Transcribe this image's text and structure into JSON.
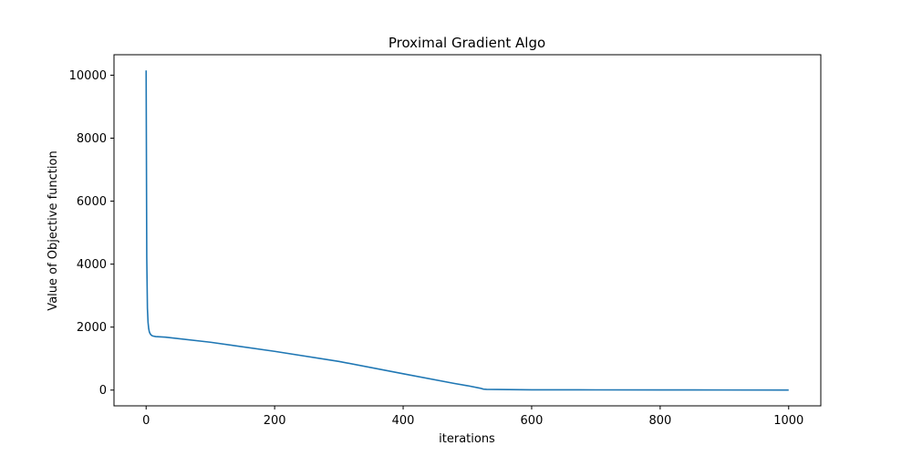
{
  "chart_data": {
    "type": "line",
    "title": "Proximal Gradient Algo",
    "xlabel": "iterations",
    "ylabel": "Value of Objective function",
    "xlim": [
      -50,
      1050
    ],
    "ylim": [
      -500,
      10650
    ],
    "xticks": [
      0,
      200,
      400,
      600,
      800,
      1000
    ],
    "yticks": [
      0,
      2000,
      4000,
      6000,
      8000,
      10000
    ],
    "grid": false,
    "legend": "none",
    "series": [
      {
        "color": "#1f77b4",
        "x": [
          0,
          1,
          2,
          3,
          4,
          5,
          6,
          7,
          8,
          10,
          15,
          30,
          100,
          200,
          300,
          400,
          480,
          500,
          520,
          525,
          530,
          600,
          700,
          800,
          900,
          1000
        ],
        "y": [
          10150,
          4200,
          2600,
          2150,
          1950,
          1850,
          1800,
          1770,
          1745,
          1720,
          1700,
          1680,
          1520,
          1230,
          910,
          520,
          210,
          140,
          60,
          30,
          22,
          10,
          7,
          5,
          3,
          2
        ]
      }
    ]
  }
}
